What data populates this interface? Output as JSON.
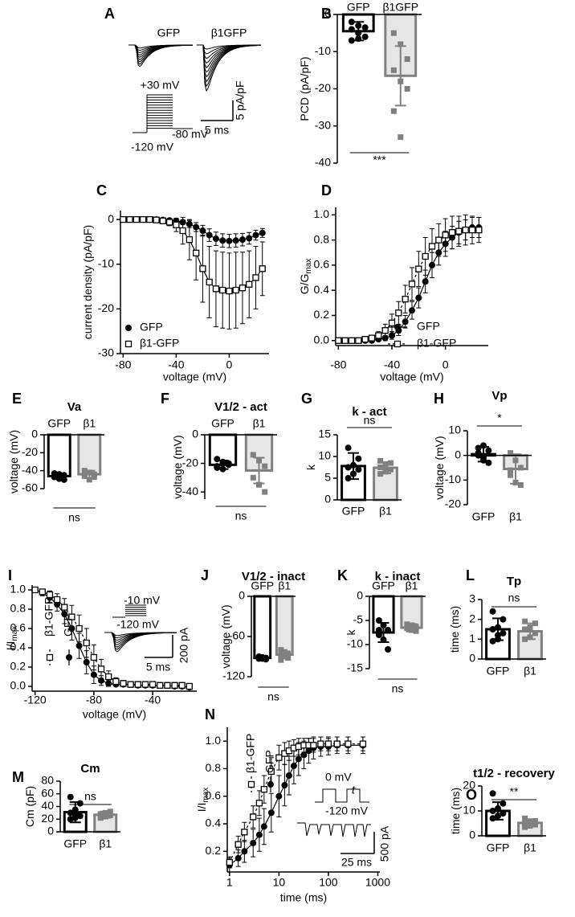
{
  "chart_data": [
    {
      "type": "trace",
      "panel": "A",
      "labels": [
        "GFP",
        "β1GFP"
      ],
      "protocol": [
        "+30 mV",
        "-80 mV",
        "-120 mV"
      ],
      "scalebars": [
        "5 ms",
        "5 pA/pF"
      ]
    },
    {
      "type": "bar",
      "panel": "B",
      "ylabel": "PCD (pA/pF)",
      "categories": [
        "GFP",
        "β1GFP"
      ],
      "values": [
        -4.5,
        -16.5
      ],
      "errors": [
        2.5,
        8
      ],
      "points": [
        [
          -2,
          -3,
          -3.5,
          -4,
          -5,
          -6,
          -7,
          -6.5
        ],
        [
          -5,
          -8,
          -12,
          -15,
          -18,
          -20,
          -26,
          -33
        ]
      ],
      "colors": [
        "#000000",
        "#808080"
      ],
      "fills": [
        "#ffffff",
        "#e6e6e6"
      ],
      "ylim": [
        -40,
        0
      ],
      "yticks": [
        0,
        -10,
        -20,
        -30,
        -40
      ],
      "significance": "***"
    },
    {
      "type": "line",
      "panel": "C",
      "xlabel": "voltage (mV)",
      "ylabel": "current density (pA/pF)",
      "x": [
        -80,
        -75,
        -70,
        -65,
        -60,
        -55,
        -50,
        -45,
        -40,
        -35,
        -30,
        -25,
        -20,
        -15,
        -10,
        -5,
        0,
        5,
        10,
        15,
        20,
        25
      ],
      "xlim": [
        -82,
        30
      ],
      "xticks": [
        -80,
        -40,
        0
      ],
      "ylim": [
        -30,
        2
      ],
      "yticks": [
        0,
        -10,
        -20,
        -30
      ],
      "series": [
        {
          "name": "GFP",
          "color": "#000000",
          "marker": "circle",
          "dash": "none",
          "values": [
            0,
            0,
            0,
            0,
            0,
            0,
            -0.1,
            -0.2,
            -0.3,
            -0.6,
            -1,
            -1.7,
            -2.5,
            -3.5,
            -4.3,
            -4.7,
            -4.8,
            -4.7,
            -4.5,
            -4.2,
            -3.5,
            -3
          ],
          "errors": [
            0,
            0,
            0,
            0,
            0,
            0,
            0.1,
            0.2,
            0.3,
            0.5,
            0.8,
            1,
            1.2,
            1.4,
            1.5,
            1.5,
            1.5,
            1.5,
            1.4,
            1.3,
            1.1,
            1
          ]
        },
        {
          "name": "β1-GFP",
          "color": "#000000",
          "marker": "square",
          "dash": "none",
          "values": [
            0,
            0,
            0,
            0,
            0,
            -0.1,
            -0.3,
            -0.6,
            -1.2,
            -2.5,
            -4.5,
            -7.5,
            -11,
            -14,
            -15.5,
            -15.8,
            -16,
            -15.8,
            -15.3,
            -14.5,
            -13,
            -11
          ],
          "errors": [
            0,
            0,
            0,
            0,
            0,
            0.2,
            0.4,
            0.8,
            1.5,
            3,
            4.5,
            6,
            7.5,
            8,
            8.5,
            8.5,
            8.5,
            8.5,
            8,
            7.5,
            7,
            6
          ]
        }
      ]
    },
    {
      "type": "line",
      "panel": "D",
      "xlabel": "voltage (mV)",
      "ylabel": "G/G",
      "ylabel_sub": "max",
      "x": [
        -80,
        -75,
        -70,
        -65,
        -60,
        -55,
        -50,
        -45,
        -40,
        -35,
        -30,
        -25,
        -20,
        -15,
        -10,
        -5,
        0,
        5,
        10,
        15,
        20,
        25
      ],
      "xlim": [
        -82,
        32
      ],
      "xticks": [
        -80,
        -40,
        0
      ],
      "ylim": [
        -0.04,
        1.06
      ],
      "yticks": [
        {
          "value": 0,
          "label": "0.0"
        },
        0.2,
        0.4,
        0.6,
        0.8,
        {
          "value": 1,
          "label": "1.0"
        }
      ],
      "series": [
        {
          "name": "GFP",
          "color": "#000000",
          "marker": "circle",
          "dash": "none",
          "values": [
            0,
            0,
            0,
            0,
            0,
            0,
            0.01,
            0.02,
            0.04,
            0.08,
            0.15,
            0.24,
            0.34,
            0.47,
            0.6,
            0.7,
            0.77,
            0.82,
            0.86,
            0.88,
            0.9,
            0.9
          ],
          "errors": [
            0,
            0,
            0,
            0,
            0,
            0,
            0.01,
            0.02,
            0.03,
            0.04,
            0.05,
            0.07,
            0.08,
            0.09,
            0.1,
            0.1,
            0.1,
            0.09,
            0.09,
            0.08,
            0.08,
            0.08
          ]
        },
        {
          "name": "β1-GFP",
          "color": "#000000",
          "marker": "square",
          "dash": "3,3",
          "values": [
            0,
            0,
            0,
            0,
            0.01,
            0.02,
            0.04,
            0.08,
            0.14,
            0.22,
            0.33,
            0.45,
            0.57,
            0.67,
            0.75,
            0.8,
            0.84,
            0.86,
            0.87,
            0.88,
            0.88,
            0.88
          ],
          "errors": [
            0,
            0,
            0,
            0,
            0.01,
            0.02,
            0.03,
            0.05,
            0.07,
            0.09,
            0.11,
            0.13,
            0.14,
            0.15,
            0.14,
            0.13,
            0.13,
            0.13,
            0.12,
            0.12,
            0.11,
            0.1
          ]
        }
      ]
    },
    {
      "type": "bar",
      "panel": "E",
      "title": "Va",
      "ylabel": "voltage (mV)",
      "categories": [
        "GFP",
        "β1"
      ],
      "values": [
        -46,
        -44
      ],
      "errors": [
        3,
        4
      ],
      "points": [
        [
          -43,
          -44,
          -45,
          -47,
          -49,
          -50,
          -47
        ],
        [
          -40,
          -42,
          -44,
          -46,
          -50,
          -47
        ]
      ],
      "colors": [
        "#000000",
        "#808080"
      ],
      "fills": [
        "#ffffff",
        "#e6e6e6"
      ],
      "ylim": [
        -60,
        0
      ],
      "yticks": [
        0,
        -20,
        -40,
        -60
      ],
      "significance": "ns"
    },
    {
      "type": "bar",
      "panel": "F",
      "title": "V1/2 - act",
      "ylabel": "voltage (mV)",
      "categories": [
        "GFP",
        "β1"
      ],
      "values": [
        -21,
        -25
      ],
      "errors": [
        3,
        9
      ],
      "points": [
        [
          -17,
          -19,
          -20,
          -22,
          -24,
          -21,
          -23,
          -20
        ],
        [
          -14,
          -18,
          -22,
          -30,
          -35,
          -40
        ]
      ],
      "colors": [
        "#000000",
        "#808080"
      ],
      "fills": [
        "#ffffff",
        "#e6e6e6"
      ],
      "ylim": [
        -45,
        0
      ],
      "yticks": [
        0,
        -20,
        -40
      ],
      "significance": "ns"
    },
    {
      "type": "bar",
      "panel": "G",
      "title": "k - act",
      "ylabel": "k",
      "categories": [
        "GFP",
        "β1"
      ],
      "values": [
        7.8,
        7.4
      ],
      "errors": [
        3,
        1.3
      ],
      "points": [
        [
          5,
          6,
          7,
          7.5,
          8,
          9.5,
          12,
          6
        ],
        [
          6,
          6.5,
          7,
          7.5,
          8,
          8.5,
          9
        ]
      ],
      "colors": [
        "#000000",
        "#808080"
      ],
      "fills": [
        "#ffffff",
        "#e6e6e6"
      ],
      "ylim": [
        0,
        15
      ],
      "yticks": [
        0,
        5,
        10,
        15
      ],
      "significance": "ns"
    },
    {
      "type": "bar",
      "panel": "H",
      "title": "Vp",
      "ylabel": "voltage (mV)",
      "categories": [
        "GFP",
        "β1"
      ],
      "values": [
        0.5,
        -5.5
      ],
      "errors": [
        3,
        6
      ],
      "points": [
        [
          3,
          4,
          2,
          0,
          -2,
          -3,
          1,
          -1
        ],
        [
          1,
          -2,
          -5,
          -8,
          -11,
          -12,
          -6
        ]
      ],
      "colors": [
        "#000000",
        "#808080"
      ],
      "fills": [
        "#ffffff",
        "#e6e6e6"
      ],
      "ylim": [
        -20,
        10
      ],
      "yticks": [
        10,
        0,
        -10,
        -20
      ],
      "significance": "*"
    },
    {
      "type": "line",
      "panel": "I",
      "xlabel": "voltage (mV)",
      "ylabel": "I/I",
      "ylabel_sub": "max",
      "x": [
        -120,
        -115,
        -110,
        -105,
        -100,
        -95,
        -90,
        -85,
        -80,
        -75,
        -70,
        -65,
        -60,
        -55,
        -50,
        -45,
        -40,
        -35,
        -30,
        -25,
        -20,
        -15
      ],
      "xlim": [
        -122,
        -10
      ],
      "xticks": [
        -120,
        -80,
        -40
      ],
      "ylim": [
        -0.05,
        1.05
      ],
      "yticks": [
        {
          "value": 0,
          "label": "0.0"
        },
        0.2,
        0.4,
        0.6,
        0.8,
        {
          "value": 1,
          "label": "1.0"
        }
      ],
      "inset_labels": [
        "-10 mV",
        "-120 mV",
        "5 ms",
        "200 pA"
      ],
      "series": [
        {
          "name": "GFP",
          "color": "#000000",
          "marker": "circle",
          "dash": "none",
          "values": [
            1,
            0.97,
            0.92,
            0.85,
            0.75,
            0.6,
            0.42,
            0.25,
            0.12,
            0.06,
            0.03,
            0.02,
            0.02,
            0.02,
            0.01,
            0.01,
            0.01,
            0.01,
            0.01,
            0,
            0,
            -0.01
          ],
          "errors": [
            0,
            0.03,
            0.05,
            0.07,
            0.1,
            0.12,
            0.13,
            0.12,
            0.09,
            0.05,
            0.03,
            0.02,
            0.02,
            0.02,
            0.02,
            0.02,
            0.02,
            0.02,
            0.02,
            0.02,
            0.02,
            0.02
          ]
        },
        {
          "name": "β1-GFP",
          "color": "#000000",
          "marker": "square",
          "dash": "3,3",
          "values": [
            1,
            0.98,
            0.95,
            0.9,
            0.82,
            0.72,
            0.6,
            0.45,
            0.3,
            0.18,
            0.1,
            0.05,
            0.03,
            0.02,
            0.02,
            0.02,
            0.02,
            0.01,
            0.01,
            0.01,
            0.01,
            0
          ],
          "errors": [
            0,
            0.02,
            0.04,
            0.06,
            0.09,
            0.12,
            0.14,
            0.15,
            0.13,
            0.1,
            0.06,
            0.04,
            0.03,
            0.03,
            0.03,
            0.03,
            0.03,
            0.03,
            0.03,
            0.03,
            0.03,
            0.03
          ]
        }
      ]
    },
    {
      "type": "bar",
      "panel": "J",
      "title": "V1/2 - inact",
      "ylabel": "voltage (mV)",
      "categories": [
        "GFP",
        "β1"
      ],
      "values": [
        -92,
        -87
      ],
      "errors": [
        3,
        5
      ],
      "points": [
        [
          -90,
          -91,
          -92,
          -93,
          -93,
          -94,
          -91
        ],
        [
          -80,
          -83,
          -86,
          -88,
          -90,
          -92,
          -95
        ]
      ],
      "colors": [
        "#000000",
        "#808080"
      ],
      "fills": [
        "#ffffff",
        "#e6e6e6"
      ],
      "ylim": [
        -120,
        0
      ],
      "yticks": [
        0,
        -60,
        -120
      ],
      "significance": "ns"
    },
    {
      "type": "bar",
      "panel": "K",
      "title": "k - inact",
      "ylabel": "k",
      "categories": [
        "GFP",
        "β1"
      ],
      "values": [
        -7.5,
        -6.5
      ],
      "errors": [
        2,
        0.8
      ],
      "points": [
        [
          -5,
          -6,
          -7,
          -8,
          -9,
          -11,
          -7
        ],
        [
          -5.8,
          -6,
          -6.3,
          -6.6,
          -7,
          -7.2
        ]
      ],
      "colors": [
        "#000000",
        "#808080"
      ],
      "fills": [
        "#ffffff",
        "#e6e6e6"
      ],
      "ylim": [
        -15,
        0
      ],
      "yticks": [
        0,
        -5,
        -10,
        -15
      ],
      "significance": "ns"
    },
    {
      "type": "bar",
      "panel": "L",
      "title": "Tp",
      "ylabel": "time (ms)",
      "categories": [
        "GFP",
        "β1"
      ],
      "values": [
        1.5,
        1.4
      ],
      "errors": [
        0.55,
        0.4
      ],
      "points": [
        [
          0.9,
          1,
          1.3,
          1.5,
          1.6,
          2,
          2.4,
          1.2
        ],
        [
          1,
          1.1,
          1.3,
          1.5,
          1.6,
          1.8,
          1.9
        ]
      ],
      "colors": [
        "#000000",
        "#808080"
      ],
      "fills": [
        "#ffffff",
        "#e6e6e6"
      ],
      "ylim": [
        0,
        3
      ],
      "yticks": [
        0,
        1,
        2,
        3
      ],
      "significance": "ns"
    },
    {
      "type": "bar",
      "panel": "M",
      "title": "Cm",
      "ylabel": "Cm (pF)",
      "categories": [
        "GFP",
        "β1"
      ],
      "values": [
        31,
        27
      ],
      "errors": [
        16,
        5
      ],
      "points": [
        [
          20,
          22,
          25,
          30,
          35,
          45,
          55,
          26
        ],
        [
          22,
          24,
          26,
          28,
          30,
          32,
          25
        ]
      ],
      "colors": [
        "#000000",
        "#808080"
      ],
      "fills": [
        "#ffffff",
        "#e6e6e6"
      ],
      "ylim": [
        0,
        80
      ],
      "yticks": [
        0,
        20,
        40,
        60,
        80
      ],
      "significance": "ns"
    },
    {
      "type": "line",
      "panel": "N",
      "xlabel": "time (ms)",
      "ylabel": "I/I",
      "ylabel_sub": "max",
      "log_x": true,
      "x": [
        1,
        1.5,
        2,
        3,
        4,
        5,
        7,
        10,
        13,
        16,
        20,
        25,
        32,
        40,
        50,
        70,
        100,
        150,
        250,
        500
      ],
      "xlim": [
        0.9,
        1100
      ],
      "xticks": [
        1,
        10,
        100,
        1000
      ],
      "ylim": [
        0.05,
        1.1
      ],
      "yticks": [
        0.2,
        0.4,
        0.6,
        0.8,
        {
          "value": 1,
          "label": "1.0"
        }
      ],
      "inset_labels": [
        "0 mV",
        "t",
        "-120 mV",
        "25 ms",
        "500 pA"
      ],
      "series": [
        {
          "name": "GFP",
          "color": "#000000",
          "marker": "circle",
          "dash": "none",
          "values": [
            0.1,
            0.15,
            0.2,
            0.26,
            0.32,
            0.38,
            0.48,
            0.6,
            0.68,
            0.75,
            0.82,
            0.87,
            0.9,
            0.93,
            0.95,
            0.96,
            0.96,
            0.97,
            0.97,
            0.97
          ],
          "errors": [
            0.05,
            0.06,
            0.08,
            0.1,
            0.12,
            0.13,
            0.14,
            0.15,
            0.15,
            0.14,
            0.13,
            0.12,
            0.1,
            0.09,
            0.08,
            0.07,
            0.06,
            0.06,
            0.06,
            0.06
          ]
        },
        {
          "name": "β1-GFP",
          "color": "#000000",
          "marker": "square",
          "dash": "3,3",
          "values": [
            0.12,
            0.25,
            0.34,
            0.45,
            0.55,
            0.65,
            0.78,
            0.88,
            0.91,
            0.93,
            0.95,
            0.96,
            0.97,
            0.97,
            0.97,
            0.98,
            0.98,
            0.98,
            0.98,
            0.98
          ],
          "errors": [
            0.04,
            0.06,
            0.07,
            0.08,
            0.09,
            0.1,
            0.1,
            0.09,
            0.08,
            0.07,
            0.06,
            0.06,
            0.05,
            0.05,
            0.05,
            0.05,
            0.05,
            0.05,
            0.05,
            0.05
          ]
        }
      ]
    },
    {
      "type": "bar",
      "panel": "O",
      "title": "t1/2 - recovery",
      "ylabel": "time (ms)",
      "categories": [
        "GFP",
        "β1"
      ],
      "values": [
        10,
        5.2
      ],
      "errors": [
        3.5,
        1.5
      ],
      "points": [
        [
          7,
          8,
          9,
          10,
          11,
          13,
          17,
          8
        ],
        [
          3.5,
          4,
          4.5,
          5,
          5.5,
          6,
          7
        ]
      ],
      "colors": [
        "#000000",
        "#808080"
      ],
      "fills": [
        "#ffffff",
        "#e6e6e6"
      ],
      "ylim": [
        0,
        20
      ],
      "yticks": [
        0,
        10,
        20
      ],
      "significance": "**"
    }
  ]
}
